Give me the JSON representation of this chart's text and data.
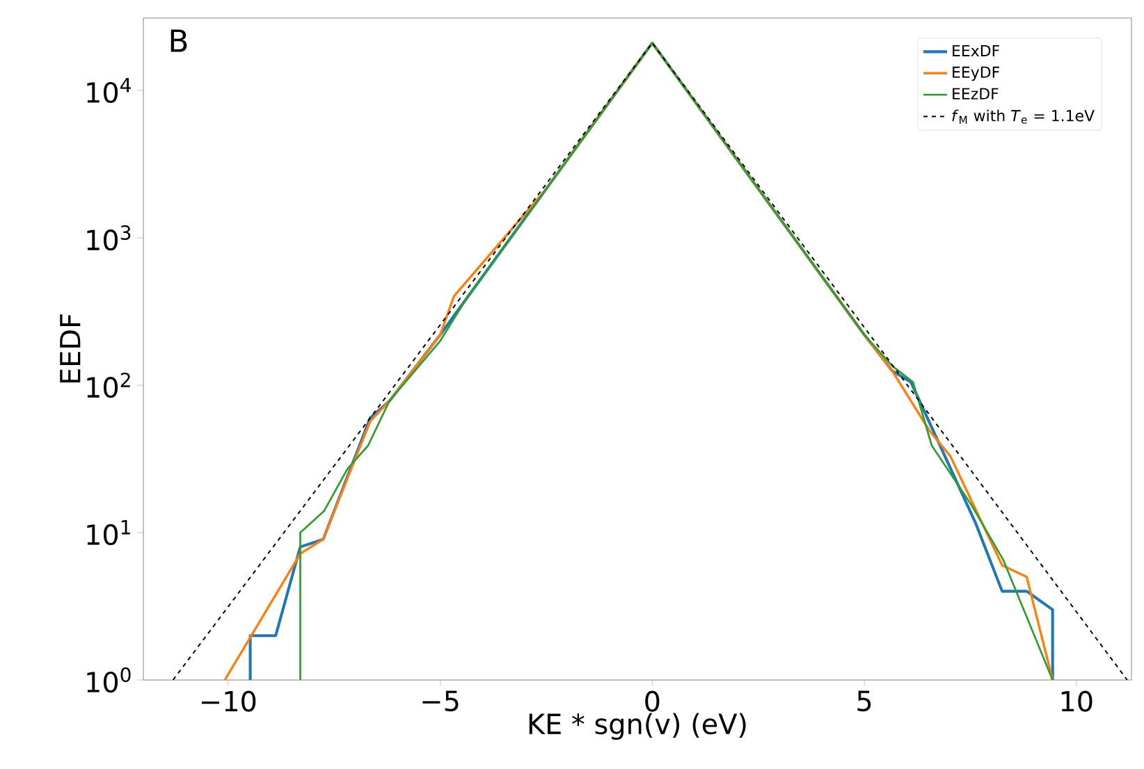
{
  "chart_data": {
    "type": "line",
    "xlabel": "KE * sgn(v) (eV)",
    "ylabel": "EEDF",
    "annotations": [
      "B"
    ],
    "log": "y",
    "legend": "top right",
    "grid": false,
    "xlim": [
      -12,
      11.3
    ],
    "ylim": [
      1,
      31000
    ],
    "xticks": [
      {
        "value": -10,
        "label": "−10"
      },
      {
        "value": -5,
        "label": "−5"
      },
      0,
      5,
      10
    ],
    "yticks": [
      {
        "value": 1,
        "label": "10$^{0}$"
      },
      {
        "value": 10,
        "label": "10$^{1}$"
      },
      {
        "value": 100,
        "label": "10$^{2}$"
      },
      {
        "value": 1000,
        "label": "10$^{3}$"
      },
      {
        "value": 10000,
        "label": "10$^{4}$"
      }
    ],
    "series": [
      {
        "name": "EExDF",
        "color": "#1f77b4",
        "line_style": "solid",
        "x": [
          -9.48,
          -9.48,
          -8.88,
          -8.3,
          -7.76,
          -6.65,
          -6.2,
          -5,
          -2.5,
          0,
          2.5,
          5,
          5.66,
          6.1,
          7.63,
          8.25,
          8.83,
          9.44,
          9.44
        ],
        "values": [
          1,
          2,
          2,
          8,
          9,
          60,
          78,
          220,
          2150,
          21000,
          2150,
          220,
          125,
          105,
          11.5,
          4,
          4,
          3,
          1
        ]
      },
      {
        "name": "EEyDF",
        "color": "#ff7f0e",
        "line_style": "solid",
        "x": [
          -10.08,
          -8.3,
          -7.76,
          -6.65,
          -6.2,
          -5,
          -4.68,
          -2.5,
          0,
          2.5,
          5,
          5.66,
          6.54,
          7.03,
          8.25,
          8.83,
          9.44
        ],
        "values": [
          1,
          7.2,
          9,
          57,
          78,
          220,
          400,
          2150,
          21000,
          2150,
          220,
          125,
          49,
          33,
          6,
          5,
          1
        ]
      },
      {
        "name": "EEzDF",
        "color": "#2ca02c",
        "line_style": "solid",
        "x": [
          -8.3,
          -8.3,
          -7.74,
          -7.19,
          -6.7,
          -6.2,
          -5,
          -4.4,
          -2.5,
          0,
          2.5,
          5,
          5.66,
          6.15,
          6.59,
          7.52,
          8.28,
          9.44
        ],
        "values": [
          1,
          10,
          14,
          27,
          39,
          78,
          200,
          380,
          2150,
          21000,
          2150,
          220,
          135,
          105,
          39,
          15.5,
          6.5,
          1
        ]
      },
      {
        "name": "*f*$_{M}$ with *T*$_{e}$ = 1.1eV",
        "color": "#000000",
        "line_style": "dashed",
        "x": [
          -11.3,
          0,
          11.2
        ],
        "values": [
          1,
          21000,
          1
        ]
      }
    ]
  }
}
